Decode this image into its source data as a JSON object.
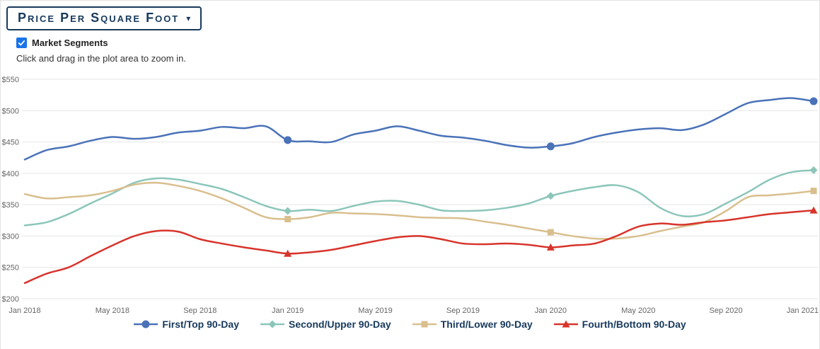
{
  "header": {
    "dropdown_label": "Price Per Square Foot",
    "caret_icon": "▾"
  },
  "controls": {
    "market_segments_label": "Market Segments",
    "market_segments_checked": true,
    "hint": "Click and drag in the plot area to zoom in."
  },
  "colors": {
    "accent_navy": "#17395c",
    "checkbox_blue": "#1a73e8",
    "grid": "#e6e6e6",
    "axis_label": "#666666"
  },
  "chart_data": {
    "type": "line",
    "title": "Price Per Square Foot",
    "xlabel": "",
    "ylabel": "",
    "ylim": [
      200,
      550
    ],
    "y_ticks": [
      200,
      250,
      300,
      350,
      400,
      450,
      500,
      550
    ],
    "y_tick_prefix": "$",
    "grid": true,
    "legend_position": "bottom",
    "x_count": 37,
    "x_tick_positions": [
      0,
      4,
      8,
      12,
      16,
      20,
      24,
      28,
      32,
      36
    ],
    "x_tick_labels": [
      "Jan 2018",
      "May 2018",
      "Sep 2018",
      "Jan 2019",
      "May 2019",
      "Sep 2019",
      "Jan 2020",
      "May 2020",
      "Sep 2020",
      "Jan 2021"
    ],
    "marker_indices": [
      12,
      24,
      36
    ],
    "series": [
      {
        "name": "First/Top 90-Day",
        "color": "#4a72b8",
        "symbol": "circle",
        "values": [
          422,
          437,
          443,
          452,
          458,
          455,
          458,
          465,
          468,
          474,
          472,
          475,
          453,
          451,
          450,
          462,
          468,
          475,
          468,
          460,
          457,
          452,
          445,
          441,
          443,
          448,
          458,
          465,
          470,
          472,
          469,
          478,
          495,
          512,
          517,
          520,
          515
        ]
      },
      {
        "name": "Second/Upper 90-Day",
        "color": "#8cc6ba",
        "symbol": "diamond",
        "values": [
          317,
          322,
          335,
          352,
          368,
          385,
          392,
          390,
          383,
          375,
          362,
          348,
          340,
          342,
          340,
          348,
          355,
          356,
          350,
          341,
          340,
          341,
          345,
          352,
          364,
          372,
          378,
          381,
          370,
          345,
          332,
          335,
          352,
          370,
          390,
          402,
          405
        ]
      },
      {
        "name": "Third/Lower 90-Day",
        "color": "#d9bf8e",
        "symbol": "square",
        "values": [
          367,
          360,
          362,
          365,
          372,
          382,
          385,
          380,
          372,
          360,
          345,
          330,
          327,
          330,
          337,
          336,
          335,
          333,
          330,
          329,
          328,
          323,
          318,
          312,
          306,
          300,
          296,
          296,
          300,
          308,
          315,
          322,
          340,
          362,
          365,
          368,
          372
        ]
      },
      {
        "name": "Fourth/Bottom 90-Day",
        "color": "#d7342b",
        "symbol": "triangle",
        "values": [
          225,
          240,
          250,
          268,
          285,
          300,
          308,
          307,
          295,
          288,
          282,
          277,
          272,
          274,
          278,
          285,
          292,
          298,
          300,
          295,
          288,
          287,
          288,
          286,
          282,
          285,
          288,
          300,
          315,
          320,
          318,
          322,
          325,
          330,
          335,
          338,
          341
        ]
      }
    ]
  }
}
